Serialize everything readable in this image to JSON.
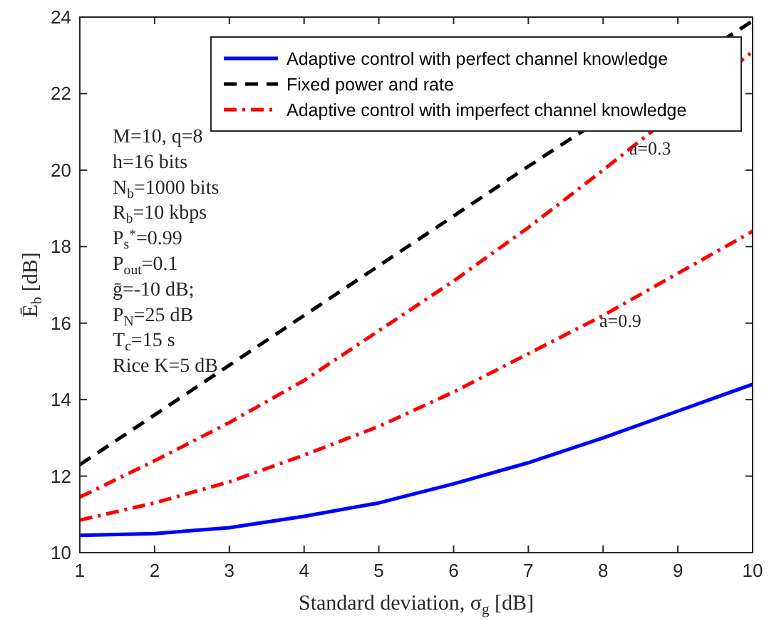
{
  "chart_data": {
    "type": "line",
    "xlabel": "Standard deviation, σ$_{g}$ [dB]",
    "ylabel": "Ē$_{b}$ [dB]",
    "x": [
      1,
      2,
      3,
      4,
      5,
      6,
      7,
      8,
      9,
      10
    ],
    "series": [
      {
        "name": "Adaptive control with perfect channel knowledge",
        "color": "#0000ff",
        "line_style": "solid",
        "values": [
          10.45,
          10.5,
          10.65,
          10.95,
          11.3,
          11.8,
          12.35,
          13.0,
          13.7,
          14.4
        ]
      },
      {
        "name": "Fixed power and rate",
        "color": "#000000",
        "line_style": "dashed",
        "values": [
          12.3,
          13.6,
          14.9,
          16.2,
          17.5,
          18.8,
          20.1,
          null,
          null,
          23.9
        ]
      },
      {
        "name": "Adaptive control with imperfect channel knowledge",
        "color": "#ff0000",
        "line_style": "dashdot",
        "values": [
          11.45,
          12.4,
          13.4,
          14.5,
          15.8,
          17.1,
          18.5,
          20.0,
          null,
          23.1
        ]
      },
      {
        "color": "#ff0000",
        "line_style": "dashdot",
        "values": [
          10.85,
          11.3,
          11.85,
          12.55,
          13.3,
          14.2,
          15.2,
          16.2,
          17.3,
          18.4
        ]
      }
    ],
    "xlim": [
      1,
      10
    ],
    "xticks": [
      1,
      2,
      3,
      4,
      5,
      6,
      7,
      8,
      9,
      10
    ],
    "ylim": [
      10,
      24
    ],
    "yticks": [
      10,
      12,
      14,
      16,
      18,
      20,
      22,
      24
    ],
    "grid": false,
    "legend": "top right",
    "marker": "none",
    "annotations": [
      "M=10, q=8",
      "h=16 bits",
      "N$_{b}$=1000 bits",
      "R$_{b}$=10 kbps",
      "P$_{s}$$^{*}$=0.99",
      "P$_{out}$=0.1",
      "ḡ=-10 dB;",
      "P$_{N}$=25 dB",
      "T$_{c}$=15 s",
      "Rice K=5 dB",
      "a=0.3",
      "a=0.9"
    ]
  }
}
